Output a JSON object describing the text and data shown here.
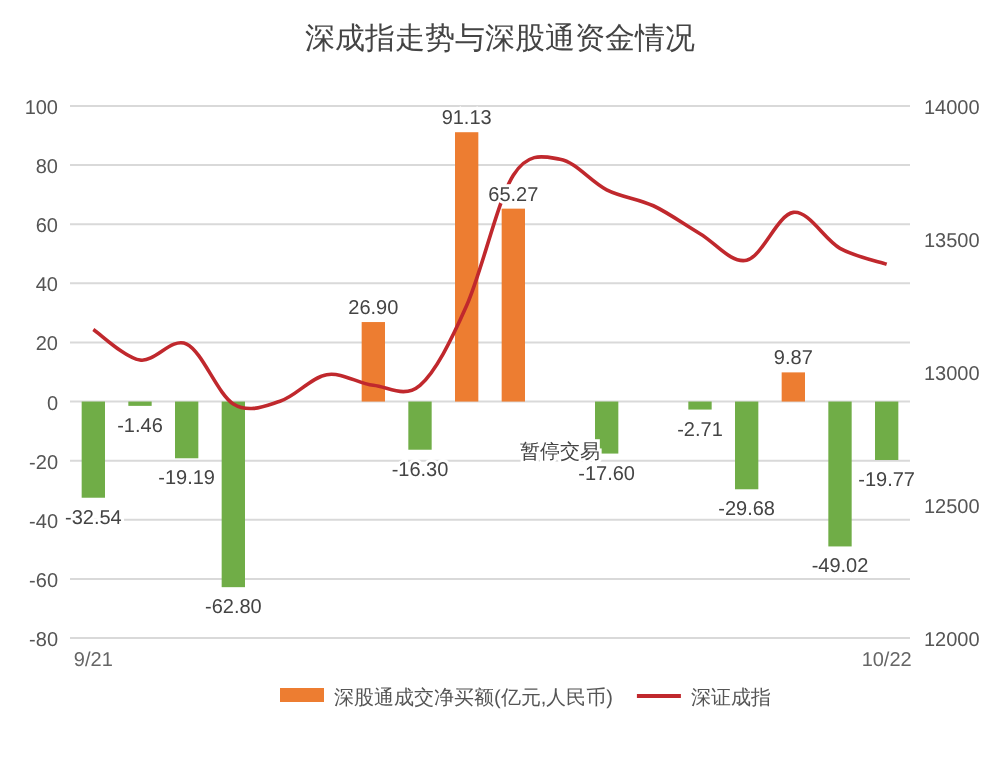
{
  "chart_data": {
    "type": "bar",
    "title": "深成指走势与深股通资金情况",
    "categories": [
      "9/21",
      null,
      null,
      null,
      null,
      null,
      null,
      null,
      null,
      null,
      null,
      null,
      null,
      null,
      null,
      null,
      null,
      "10/22"
    ],
    "series": [
      {
        "name": "深股通成交净买额(亿元,人民币)",
        "color": "#ed7d31",
        "colors": [
          "#70ad47",
          "#70ad47",
          "#70ad47",
          "#70ad47",
          null,
          null,
          "#ed7d31",
          "#70ad47",
          "#ed7d31",
          "#ed7d31",
          null,
          "#70ad47",
          null,
          "#70ad47",
          "#70ad47",
          "#ed7d31",
          "#70ad47",
          "#70ad47"
        ],
        "values": [
          -32.54,
          -1.46,
          -19.19,
          -62.8,
          null,
          null,
          26.9,
          -16.3,
          91.13,
          65.27,
          null,
          -17.6,
          null,
          -2.71,
          -29.68,
          9.87,
          -49.02,
          -19.77
        ],
        "value_labels": [
          "-32.54",
          "-1.46",
          "-19.19",
          "-62.80",
          null,
          null,
          "26.90",
          "-16.30",
          "91.13",
          "65.27",
          "暂停交易",
          "-17.60",
          null,
          "-2.71",
          "-29.68",
          "9.87",
          "-49.02",
          "-19.77"
        ]
      },
      {
        "name": "深证成指",
        "type": "line",
        "axis": "y2",
        "color": "#c0282d",
        "values": [
          13160,
          13045,
          13105,
          12880,
          12890,
          12990,
          12950,
          12950,
          13250,
          13740,
          13800,
          13685,
          13625,
          13520,
          13420,
          13600,
          13465,
          13405
        ]
      }
    ],
    "ylim": [
      -80,
      100
    ],
    "yticks": [
      -80,
      -60,
      -40,
      -20,
      0,
      20,
      40,
      60,
      80,
      100
    ],
    "y2lim": [
      12000,
      14000
    ],
    "y2ticks": [
      12000,
      12500,
      13000,
      13500,
      14000
    ],
    "grid": "y",
    "legend": "bottom"
  }
}
